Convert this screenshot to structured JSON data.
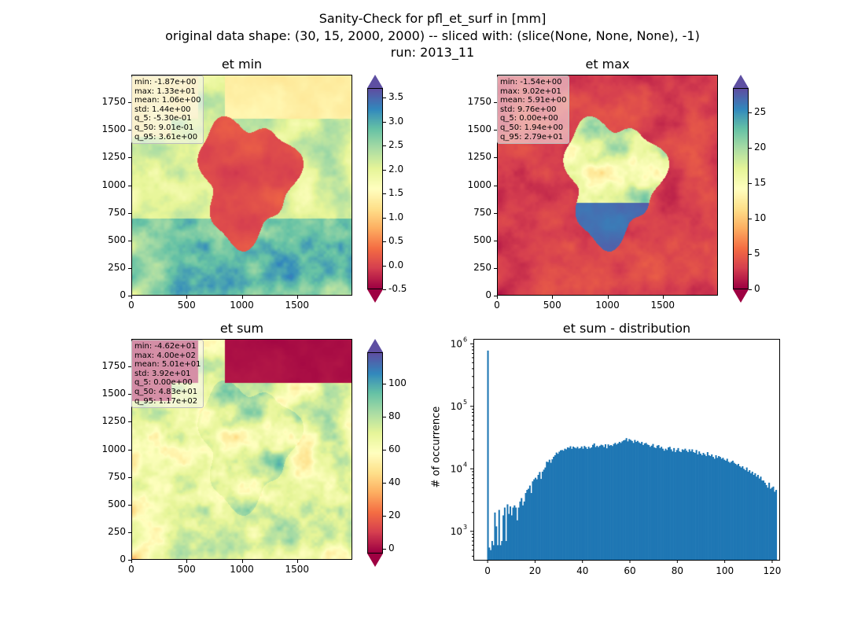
{
  "figure": {
    "title_line1": "Sanity-Check for pfl_et_surf in [mm]",
    "title_line2": "original data shape: (30, 15, 2000, 2000) -- sliced with: (slice(None, None, None), -1)",
    "title_line3": "run: 2013_11"
  },
  "palette": [
    "#9e0142",
    "#d53e4f",
    "#f46d43",
    "#fdae61",
    "#fee08b",
    "#ffffbf",
    "#e6f598",
    "#abdda4",
    "#66c2a5",
    "#3288bd",
    "#5e4fa2"
  ],
  "chart_data": [
    {
      "type": "heatmap",
      "title": "et min",
      "xticks": [
        "0",
        "500",
        "1000",
        "1500"
      ],
      "yticks": [
        "0",
        "250",
        "500",
        "750",
        "1000",
        "1250",
        "1500",
        "1750"
      ],
      "xlim": [
        0,
        2000
      ],
      "ylim": [
        0,
        2000
      ],
      "colorbar": {
        "min": -0.5,
        "max": 3.7,
        "ticks": [
          "-0.5",
          "0.0",
          "0.5",
          "1.0",
          "1.5",
          "2.0",
          "2.5",
          "3.0",
          "3.5"
        ],
        "tick_values": [
          -0.5,
          0,
          0.5,
          1,
          1.5,
          2,
          2.5,
          3,
          3.5
        ],
        "extend": "both",
        "cmap": "Spectral"
      },
      "stats": [
        "min: -1.87e+00",
        "max: 1.33e+01",
        "mean: 1.06e+00",
        "std: 1.44e+00",
        "q_5: -5.30e-01",
        "q_50: 9.01e-01",
        "q_95: 3.61e+00"
      ]
    },
    {
      "type": "heatmap",
      "title": "et max",
      "xticks": [
        "0",
        "500",
        "1000",
        "1500"
      ],
      "yticks": [
        "0",
        "250",
        "500",
        "750",
        "1000",
        "1250",
        "1500",
        "1750"
      ],
      "xlim": [
        0,
        2000
      ],
      "ylim": [
        0,
        2000
      ],
      "colorbar": {
        "min": 0,
        "max": 28.5,
        "ticks": [
          "0",
          "5",
          "10",
          "15",
          "20",
          "25"
        ],
        "tick_values": [
          0,
          5,
          10,
          15,
          20,
          25
        ],
        "extend": "both",
        "cmap": "Spectral"
      },
      "stats": [
        "min: -1.54e+00",
        "max: 9.02e+01",
        "mean: 5.91e+00",
        "std: 9.76e+00",
        "q_5: 0.00e+00",
        "q_50: 1.94e+00",
        "q_95: 2.79e+01"
      ]
    },
    {
      "type": "heatmap",
      "title": "et sum",
      "xticks": [
        "0",
        "500",
        "1000",
        "1500"
      ],
      "yticks": [
        "0",
        "250",
        "500",
        "750",
        "1000",
        "1250",
        "1500",
        "1750"
      ],
      "xlim": [
        0,
        2000
      ],
      "ylim": [
        0,
        2000
      ],
      "colorbar": {
        "min": -3,
        "max": 119,
        "ticks": [
          "0",
          "20",
          "40",
          "60",
          "80",
          "100"
        ],
        "tick_values": [
          0,
          20,
          40,
          60,
          80,
          100
        ],
        "extend": "both",
        "cmap": "Spectral"
      },
      "stats": [
        "min: -4.62e+01",
        "max: 4.00e+02",
        "mean: 5.01e+01",
        "std: 3.92e+01",
        "q_5: 0.00e+00",
        "q_50: 4.83e+01",
        "q_95: 1.17e+02"
      ]
    },
    {
      "type": "bar",
      "title": "et sum - distribution",
      "ylabel": "# of occurrence",
      "xlabel": "",
      "yscale": "log",
      "xlim": [
        -6,
        123
      ],
      "ylim": [
        350,
        1200000
      ],
      "xticks": [
        "0",
        "20",
        "40",
        "60",
        "80",
        "100",
        "120"
      ],
      "xtick_values": [
        0,
        20,
        40,
        60,
        80,
        100,
        120
      ],
      "ytick_values": [
        1000,
        10000,
        100000,
        1000000
      ],
      "ytick_base": "10",
      "ytick_exponents": [
        "3",
        "4",
        "5",
        "6"
      ],
      "bin_start": -0.2,
      "bin_width": 0.59,
      "color": "#1f77b4",
      "values": [
        780000,
        550,
        500,
        700,
        600,
        2000,
        1200,
        600,
        2200,
        600,
        700,
        1800,
        2400,
        700,
        2700,
        1900,
        2500,
        1800,
        2400,
        2600,
        2400,
        1500,
        2400,
        3000,
        3400,
        2600,
        3000,
        4100,
        4600,
        4800,
        5400,
        4100,
        6300,
        6800,
        7200,
        6800,
        8000,
        8900,
        6900,
        9000,
        9700,
        10500,
        13000,
        12800,
        14000,
        12500,
        14200,
        15600,
        16500,
        18200,
        17400,
        18800,
        19800,
        20000,
        19500,
        21000,
        20500,
        22000,
        21700,
        23000,
        20900,
        22700,
        21900,
        21300,
        22500,
        21100,
        21500,
        22800,
        21000,
        23200,
        22200,
        20800,
        22600,
        21300,
        22000,
        24200,
        25500,
        22300,
        23400,
        22300,
        23400,
        24300,
        23800,
        22300,
        24700,
        21300,
        24600,
        23500,
        24000,
        23200,
        25000,
        26000,
        24500,
        25500,
        27000,
        26000,
        27500,
        28500,
        29000,
        31000,
        27500,
        30000,
        29000,
        28000,
        26000,
        29000,
        27000,
        28000,
        26500,
        25500,
        27000,
        24000,
        25500,
        26000,
        24500,
        24000,
        22500,
        23500,
        25000,
        22000,
        21500,
        23500,
        24000,
        21500,
        22500,
        21000,
        19500,
        21000,
        20000,
        22000,
        22500,
        20500,
        19000,
        21500,
        18500,
        20000,
        21500,
        19000,
        18500,
        20500,
        20000,
        21000,
        19500,
        18500,
        20500,
        19000,
        20500,
        18500,
        18000,
        20000,
        17000,
        19000,
        17500,
        16500,
        18000,
        17000,
        16000,
        18500,
        16500,
        16000,
        17000,
        15500,
        14500,
        16500,
        15000,
        16000,
        15500,
        14500,
        15000,
        14000,
        13500,
        14500,
        13000,
        12500,
        13000,
        13500,
        12500,
        12000,
        11500,
        12000,
        11000,
        10500,
        11000,
        10000,
        9500,
        10500,
        9000,
        9500,
        8500,
        9000,
        8000,
        8500,
        7500,
        8000,
        7000,
        7500,
        6500,
        6500,
        6000,
        5500,
        5000,
        6000,
        4800,
        5000,
        5200,
        4300,
        4600
      ]
    }
  ]
}
